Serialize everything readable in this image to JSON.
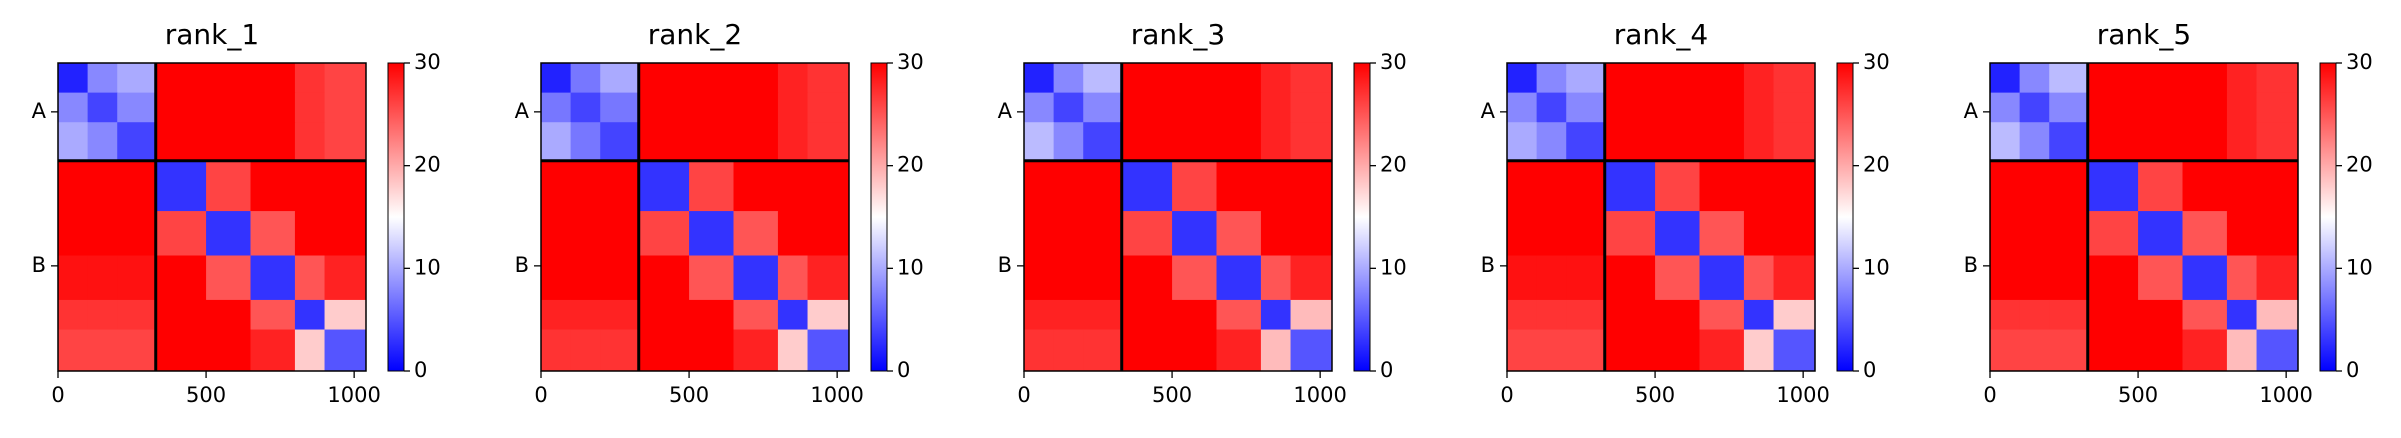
{
  "chart_data": [
    {
      "type": "heatmap",
      "title": "rank_1",
      "bins": [
        0,
        100,
        200,
        330,
        500,
        650,
        800,
        900,
        1040
      ],
      "xlim": [
        0,
        1040
      ],
      "ylim": [
        0,
        1040
      ],
      "xticks": [
        0,
        500,
        1000
      ],
      "yticks": [
        {
          "value": 165,
          "label": "A"
        },
        {
          "value": 685,
          "label": "B"
        }
      ],
      "boundaries": [
        330
      ],
      "colormap": [
        "#0000ff",
        "#ffffff",
        "#ff0000"
      ],
      "clim": [
        0,
        30
      ],
      "cticks": [
        0,
        10,
        20,
        30
      ],
      "values": [
        [
          2,
          8,
          10,
          30,
          30,
          30,
          27,
          26
        ],
        [
          8,
          4,
          8,
          30,
          30,
          30,
          27,
          26
        ],
        [
          10,
          8,
          4,
          30,
          30,
          30,
          27,
          26
        ],
        [
          30,
          30,
          30,
          3,
          26,
          30,
          30,
          30
        ],
        [
          30,
          30,
          30,
          26,
          3,
          25,
          30,
          30
        ],
        [
          29,
          29,
          29,
          30,
          25,
          3,
          25,
          28
        ],
        [
          27,
          27,
          27,
          30,
          30,
          25,
          3,
          18
        ],
        [
          26,
          26,
          26,
          30,
          30,
          28,
          18,
          5
        ]
      ]
    },
    {
      "type": "heatmap",
      "title": "rank_2",
      "bins": [
        0,
        100,
        200,
        330,
        500,
        650,
        800,
        900,
        1040
      ],
      "xlim": [
        0,
        1040
      ],
      "ylim": [
        0,
        1040
      ],
      "xticks": [
        0,
        500,
        1000
      ],
      "yticks": [
        {
          "value": 165,
          "label": "A"
        },
        {
          "value": 685,
          "label": "B"
        }
      ],
      "boundaries": [
        330
      ],
      "colormap": [
        "#0000ff",
        "#ffffff",
        "#ff0000"
      ],
      "clim": [
        0,
        30
      ],
      "cticks": [
        0,
        10,
        20,
        30
      ],
      "values": [
        [
          2,
          7,
          10,
          30,
          30,
          30,
          28,
          27
        ],
        [
          7,
          4,
          7,
          30,
          30,
          30,
          28,
          27
        ],
        [
          10,
          7,
          4,
          30,
          30,
          30,
          28,
          27
        ],
        [
          30,
          30,
          30,
          3,
          26,
          30,
          30,
          30
        ],
        [
          30,
          30,
          30,
          26,
          3,
          25,
          30,
          30
        ],
        [
          30,
          30,
          30,
          30,
          25,
          3,
          25,
          28
        ],
        [
          28,
          28,
          28,
          30,
          30,
          25,
          3,
          18
        ],
        [
          27,
          27,
          27,
          30,
          30,
          28,
          18,
          5
        ]
      ]
    },
    {
      "type": "heatmap",
      "title": "rank_3",
      "bins": [
        0,
        100,
        200,
        330,
        500,
        650,
        800,
        900,
        1040
      ],
      "xlim": [
        0,
        1040
      ],
      "ylim": [
        0,
        1040
      ],
      "xticks": [
        0,
        500,
        1000
      ],
      "yticks": [
        {
          "value": 165,
          "label": "A"
        },
        {
          "value": 685,
          "label": "B"
        }
      ],
      "boundaries": [
        330
      ],
      "colormap": [
        "#0000ff",
        "#ffffff",
        "#ff0000"
      ],
      "clim": [
        0,
        30
      ],
      "cticks": [
        0,
        10,
        20,
        30
      ],
      "values": [
        [
          2,
          8,
          11,
          30,
          30,
          30,
          28,
          27
        ],
        [
          8,
          4,
          8,
          30,
          30,
          30,
          28,
          27
        ],
        [
          11,
          8,
          4,
          30,
          30,
          30,
          28,
          27
        ],
        [
          30,
          30,
          30,
          3,
          26,
          30,
          30,
          30
        ],
        [
          30,
          30,
          30,
          26,
          3,
          25,
          30,
          30
        ],
        [
          30,
          30,
          30,
          30,
          25,
          3,
          25,
          28
        ],
        [
          28,
          28,
          28,
          30,
          30,
          25,
          3,
          19
        ],
        [
          27,
          27,
          27,
          30,
          30,
          28,
          19,
          5
        ]
      ]
    },
    {
      "type": "heatmap",
      "title": "rank_4",
      "bins": [
        0,
        100,
        200,
        330,
        500,
        650,
        800,
        900,
        1040
      ],
      "xlim": [
        0,
        1040
      ],
      "ylim": [
        0,
        1040
      ],
      "xticks": [
        0,
        500,
        1000
      ],
      "yticks": [
        {
          "value": 165,
          "label": "A"
        },
        {
          "value": 685,
          "label": "B"
        }
      ],
      "boundaries": [
        330
      ],
      "colormap": [
        "#0000ff",
        "#ffffff",
        "#ff0000"
      ],
      "clim": [
        0,
        30
      ],
      "cticks": [
        0,
        10,
        20,
        30
      ],
      "values": [
        [
          2,
          8,
          10,
          30,
          30,
          30,
          28,
          27
        ],
        [
          8,
          4,
          8,
          30,
          30,
          30,
          28,
          27
        ],
        [
          10,
          8,
          4,
          30,
          30,
          30,
          28,
          27
        ],
        [
          30,
          30,
          30,
          3,
          26,
          30,
          30,
          30
        ],
        [
          30,
          30,
          30,
          26,
          3,
          25,
          30,
          30
        ],
        [
          29,
          29,
          29,
          30,
          25,
          3,
          25,
          28
        ],
        [
          27,
          27,
          27,
          30,
          30,
          25,
          3,
          18
        ],
        [
          26,
          26,
          26,
          30,
          30,
          28,
          18,
          5
        ]
      ]
    },
    {
      "type": "heatmap",
      "title": "rank_5",
      "bins": [
        0,
        100,
        200,
        330,
        500,
        650,
        800,
        900,
        1040
      ],
      "xlim": [
        0,
        1040
      ],
      "ylim": [
        0,
        1040
      ],
      "xticks": [
        0,
        500,
        1000
      ],
      "yticks": [
        {
          "value": 165,
          "label": "A"
        },
        {
          "value": 685,
          "label": "B"
        }
      ],
      "boundaries": [
        330
      ],
      "colormap": [
        "#0000ff",
        "#ffffff",
        "#ff0000"
      ],
      "clim": [
        0,
        30
      ],
      "cticks": [
        0,
        10,
        20,
        30
      ],
      "values": [
        [
          2,
          8,
          11,
          30,
          30,
          30,
          28,
          27
        ],
        [
          8,
          4,
          8,
          30,
          30,
          30,
          28,
          27
        ],
        [
          11,
          8,
          4,
          30,
          30,
          30,
          28,
          27
        ],
        [
          30,
          30,
          30,
          3,
          26,
          30,
          30,
          30
        ],
        [
          30,
          30,
          30,
          26,
          3,
          25,
          30,
          30
        ],
        [
          30,
          30,
          30,
          30,
          25,
          3,
          25,
          28
        ],
        [
          27,
          27,
          27,
          30,
          30,
          25,
          3,
          19
        ],
        [
          26,
          26,
          26,
          30,
          30,
          28,
          19,
          5
        ]
      ]
    }
  ]
}
